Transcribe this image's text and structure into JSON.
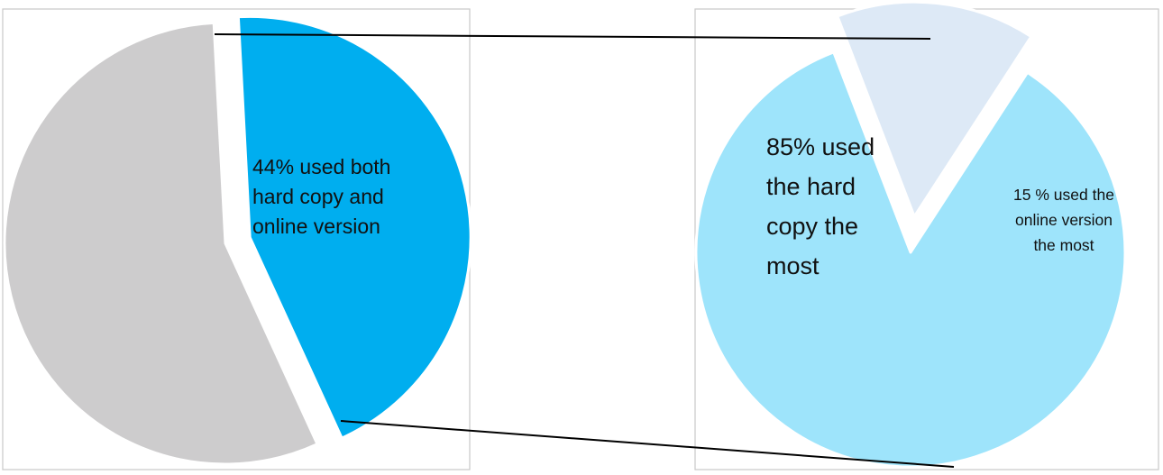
{
  "chart_data": [
    {
      "type": "pie",
      "slices": [
        {
          "value": 44,
          "label_lines": [
            "44%  used both",
            "hard copy and",
            "online version"
          ],
          "color": "#00AEEF",
          "exploded": true
        },
        {
          "value": 56,
          "color": "#CDCCCD"
        }
      ]
    },
    {
      "type": "pie",
      "slices": [
        {
          "value": 85,
          "label_lines": [
            "85% used",
            "the hard",
            "copy the",
            "most"
          ],
          "color": "#9EE4FB"
        },
        {
          "value": 15,
          "label_lines": [
            "15 %  used the",
            "online version",
            "the most"
          ],
          "color": "#DDE9F6",
          "exploded": true
        }
      ]
    }
  ],
  "colors": {
    "frame": "#C8C8C8",
    "connector": "#000000",
    "label_text": "#111111"
  }
}
